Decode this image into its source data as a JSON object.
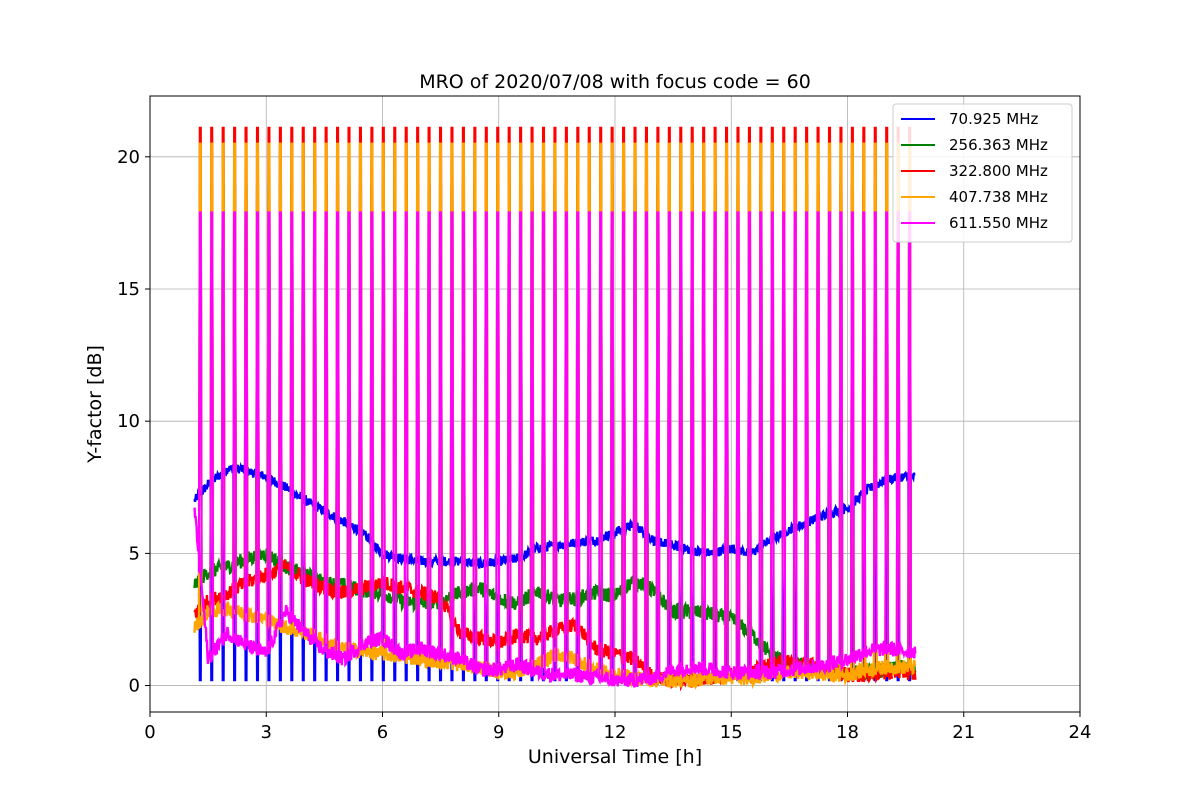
{
  "chart_data": {
    "type": "line",
    "title": "MRO of 2020/07/08 with focus code = 60",
    "xlabel": "Universal Time [h]",
    "ylabel": "Y-factor [dB]",
    "xlim": [
      0,
      24
    ],
    "ylim": [
      -1.0,
      22.3
    ],
    "xticks": [
      "0",
      "3",
      "6",
      "9",
      "12",
      "15",
      "18",
      "21",
      "24"
    ],
    "yticks": [
      "0",
      "5",
      "10",
      "15",
      "20"
    ],
    "grid": true,
    "legend_position": "top-right",
    "data_range_h": [
      1.15,
      19.75
    ],
    "calibration_pulse_count": 63,
    "series": [
      {
        "name": " 70.925 MHz",
        "color": "#0000ff",
        "pulse_peak": 0.2,
        "x": [
          1.15,
          1.5,
          2.0,
          2.3,
          3.0,
          3.5,
          4.0,
          4.5,
          5.0,
          5.5,
          6.0,
          6.5,
          7.0,
          7.5,
          8.0,
          8.5,
          9.0,
          9.5,
          10.0,
          10.5,
          11.0,
          11.5,
          12.0,
          12.5,
          13.0,
          13.5,
          14.0,
          14.5,
          15.0,
          15.5,
          16.0,
          16.5,
          17.0,
          17.5,
          18.0,
          18.5,
          19.0,
          19.5,
          19.75
        ],
        "y": [
          7.0,
          7.6,
          8.2,
          8.2,
          7.9,
          7.5,
          7.0,
          6.6,
          6.2,
          5.8,
          5.0,
          4.8,
          4.7,
          4.7,
          4.7,
          4.6,
          4.7,
          4.8,
          5.2,
          5.3,
          5.4,
          5.5,
          5.8,
          6.1,
          5.5,
          5.3,
          5.1,
          5.0,
          5.2,
          5.0,
          5.5,
          5.9,
          6.2,
          6.5,
          6.7,
          7.4,
          7.8,
          7.9,
          7.9
        ]
      },
      {
        "name": "256.363 MHz",
        "color": "#008000",
        "pulse_peak": 18.9,
        "x": [
          1.15,
          1.5,
          2.0,
          2.5,
          3.0,
          3.5,
          4.0,
          4.5,
          5.0,
          5.5,
          6.0,
          6.5,
          7.0,
          7.5,
          8.0,
          8.5,
          9.0,
          9.5,
          10.0,
          10.5,
          11.0,
          11.5,
          12.0,
          12.5,
          13.0,
          13.5,
          14.0,
          14.5,
          15.0,
          15.5,
          16.0,
          16.5,
          17.0,
          17.5,
          18.0,
          18.5,
          19.0,
          19.5,
          19.75
        ],
        "y": [
          3.8,
          4.3,
          4.5,
          4.8,
          5.0,
          4.5,
          4.2,
          3.9,
          3.8,
          3.6,
          3.5,
          3.2,
          3.1,
          3.2,
          3.5,
          3.7,
          3.3,
          3.1,
          3.6,
          3.2,
          3.3,
          3.5,
          3.4,
          4.0,
          3.6,
          2.8,
          2.8,
          2.7,
          2.5,
          2.0,
          1.2,
          0.8,
          0.7,
          0.6,
          0.5,
          0.5,
          0.6,
          0.7,
          0.5
        ]
      },
      {
        "name": "322.800 MHz",
        "color": "#ff0000",
        "pulse_peak": 21.1,
        "x": [
          1.15,
          1.5,
          2.0,
          2.5,
          3.0,
          3.5,
          4.0,
          4.5,
          5.0,
          5.5,
          6.0,
          6.5,
          7.0,
          7.5,
          8.0,
          8.5,
          9.0,
          9.5,
          10.0,
          10.5,
          11.0,
          11.5,
          12.0,
          12.5,
          13.0,
          13.5,
          14.0,
          14.5,
          15.0,
          15.5,
          16.0,
          16.5,
          17.0,
          17.5,
          18.0,
          18.5,
          19.0,
          19.5,
          19.75
        ],
        "y": [
          2.7,
          3.2,
          3.5,
          3.9,
          4.2,
          4.5,
          4.0,
          3.7,
          3.5,
          3.7,
          3.9,
          3.7,
          3.5,
          3.3,
          2.0,
          1.8,
          1.6,
          1.9,
          1.8,
          2.1,
          2.3,
          1.4,
          1.2,
          1.0,
          0.3,
          0.2,
          0.2,
          0.3,
          0.4,
          0.5,
          0.8,
          0.9,
          0.8,
          0.6,
          0.4,
          0.4,
          0.5,
          0.5,
          0.4
        ]
      },
      {
        "name": "407.738 MHz",
        "color": "#ffa500",
        "pulse_peak": 20.5,
        "x": [
          1.15,
          1.5,
          2.0,
          2.5,
          3.0,
          3.5,
          4.0,
          4.5,
          5.0,
          5.5,
          6.0,
          6.5,
          7.0,
          7.5,
          8.0,
          8.5,
          9.0,
          9.5,
          10.0,
          10.5,
          11.0,
          11.5,
          12.0,
          12.5,
          13.0,
          13.5,
          14.0,
          14.5,
          15.0,
          15.5,
          16.0,
          16.5,
          17.0,
          17.5,
          18.0,
          18.5,
          19.0,
          19.5,
          19.75
        ],
        "y": [
          2.2,
          2.8,
          2.9,
          2.7,
          2.5,
          2.2,
          2.0,
          1.7,
          1.4,
          1.3,
          1.2,
          1.1,
          1.0,
          0.9,
          0.8,
          0.7,
          0.5,
          0.5,
          0.8,
          1.2,
          1.0,
          0.6,
          0.4,
          0.3,
          0.2,
          0.2,
          0.2,
          0.3,
          0.3,
          0.3,
          0.4,
          0.5,
          0.5,
          0.4,
          0.4,
          0.6,
          0.7,
          0.7,
          0.7
        ]
      },
      {
        "name": "611.550 MHz",
        "color": "#ff00ff",
        "pulse_peak": 17.9,
        "x": [
          1.15,
          1.5,
          2.0,
          2.5,
          3.0,
          3.5,
          4.0,
          4.5,
          5.0,
          5.5,
          6.0,
          6.5,
          7.0,
          7.5,
          8.0,
          8.5,
          9.0,
          9.5,
          10.0,
          10.5,
          11.0,
          11.5,
          12.0,
          12.5,
          13.0,
          13.5,
          14.0,
          14.5,
          15.0,
          15.5,
          16.0,
          16.5,
          17.0,
          17.5,
          18.0,
          18.5,
          19.0,
          19.5,
          19.75
        ],
        "y": [
          6.7,
          1.0,
          2.0,
          1.5,
          1.2,
          2.8,
          2.0,
          1.3,
          1.0,
          1.6,
          1.8,
          1.2,
          1.4,
          1.2,
          1.0,
          0.6,
          0.6,
          0.8,
          0.5,
          0.4,
          0.4,
          0.3,
          0.2,
          0.2,
          0.3,
          0.6,
          0.7,
          0.6,
          0.5,
          0.5,
          0.5,
          0.6,
          0.7,
          0.8,
          1.0,
          1.3,
          1.4,
          1.3,
          1.3
        ]
      }
    ]
  }
}
